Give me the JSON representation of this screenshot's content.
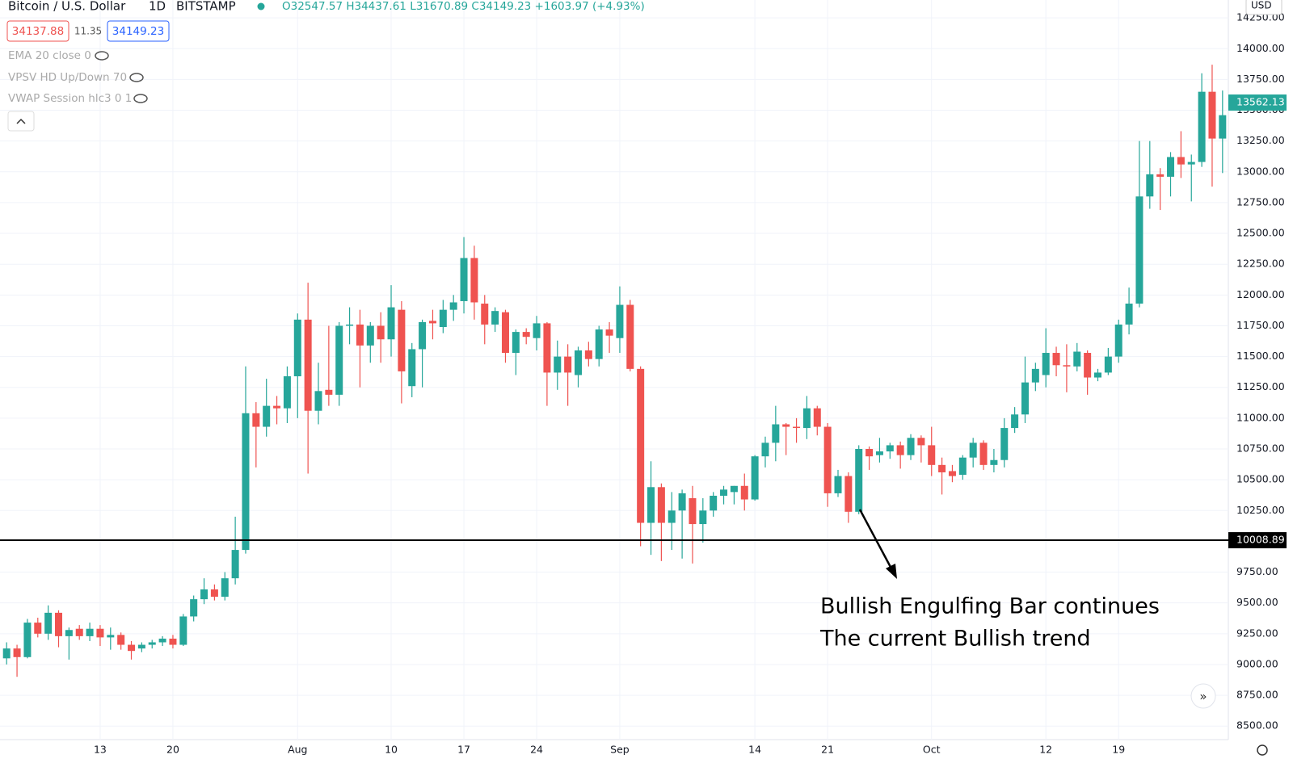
{
  "header": {
    "symbol": "Bitcoin / U.S. Dollar",
    "interval": "1D",
    "exchange": "BITSTAMP",
    "ohlc": "O32547.57 H34437.61 L31670.89 C34149.23 +1603.97 (+4.93%)",
    "bid": "34137.88",
    "spread": "11.35",
    "ask": "34149.23",
    "indicators": [
      "EMA 20 close 0",
      "VPSV HD Up/Down 70",
      "VWAP Session hlc3 0 1"
    ],
    "currency": "USD"
  },
  "chart_data": {
    "type": "candlestick",
    "categories": [
      null,
      null,
      null,
      null,
      null,
      null,
      null,
      null,
      null,
      "13",
      null,
      null,
      null,
      null,
      null,
      null,
      "20",
      null,
      null,
      null,
      null,
      null,
      null,
      null,
      null,
      null,
      null,
      null,
      "Aug",
      null,
      null,
      null,
      null,
      null,
      null,
      null,
      null,
      "10",
      null,
      null,
      null,
      null,
      null,
      null,
      "17",
      null,
      null,
      null,
      null,
      null,
      null,
      "24",
      null,
      null,
      null,
      null,
      null,
      null,
      null,
      "Sep",
      null,
      null,
      null,
      null,
      null,
      null,
      null,
      null,
      null,
      null,
      null,
      null,
      "14",
      null,
      null,
      null,
      null,
      null,
      null,
      "21",
      null,
      null,
      null,
      null,
      null,
      null,
      null,
      null,
      null,
      "Oct",
      null,
      null,
      null,
      null,
      null,
      null,
      null,
      null,
      null,
      null,
      "12",
      null,
      null,
      null,
      null,
      null,
      null,
      "19",
      null,
      null,
      null,
      null,
      null,
      null,
      null,
      null,
      null,
      null
    ],
    "open": [
      9050,
      9130,
      9060,
      9340,
      9250,
      9420,
      9230,
      9290,
      9230,
      9290,
      9220,
      9240,
      9160,
      9130,
      9160,
      9180,
      9210,
      9160,
      9390,
      9530,
      9610,
      9550,
      9700,
      9930,
      11040,
      10930,
      11100,
      11080,
      11340,
      11800,
      11060,
      11230,
      11190,
      11750,
      11760,
      11590,
      11750,
      11640,
      11880,
      11260,
      11560,
      11790,
      11740,
      11880,
      11950,
      12300,
      11930,
      11760,
      11860,
      11530,
      11700,
      11650,
      11770,
      11370,
      11500,
      11350,
      11550,
      11480,
      11720,
      11650,
      11920,
      11400,
      10150,
      10440,
      10150,
      10250,
      10350,
      10140,
      10250,
      10370,
      10400,
      10450,
      10340,
      10690,
      10800,
      10950,
      10930,
      10920,
      11080,
      10930,
      10390,
      10530,
      10240,
      10750,
      10700,
      10730,
      10780,
      10700,
      10840,
      10780,
      10620,
      10570,
      10540,
      10680,
      10800,
      10620,
      10660,
      10920,
      11030,
      11290,
      11350,
      11530,
      11430,
      11420,
      11530,
      11330,
      11370,
      11500,
      11760,
      11930,
      12800,
      12980,
      12960,
      13120,
      13060,
      13080,
      13650,
      13270
    ],
    "high": [
      9180,
      9160,
      9370,
      9380,
      9480,
      9440,
      9300,
      9320,
      9340,
      9320,
      9300,
      9260,
      9190,
      9180,
      9200,
      9230,
      9240,
      9410,
      9560,
      9700,
      9650,
      9750,
      10200,
      11420,
      11130,
      11320,
      11180,
      11420,
      11850,
      12100,
      11450,
      11750,
      11780,
      11900,
      11880,
      11780,
      11860,
      12080,
      11950,
      11610,
      11800,
      11880,
      11960,
      12000,
      12470,
      12400,
      12000,
      11900,
      11880,
      11720,
      11730,
      11830,
      11780,
      11630,
      11600,
      11580,
      11620,
      11750,
      11780,
      12070,
      11960,
      11420,
      10650,
      10470,
      10400,
      10420,
      10450,
      10350,
      10400,
      10450,
      10450,
      10550,
      10700,
      10850,
      11100,
      10960,
      11000,
      11180,
      11100,
      10960,
      10580,
      10560,
      10780,
      10770,
      10840,
      10800,
      10810,
      10870,
      10860,
      10930,
      10680,
      10620,
      10700,
      10840,
      10820,
      10750,
      11000,
      11090,
      11500,
      11450,
      11730,
      11580,
      11600,
      11610,
      11550,
      11400,
      11570,
      11800,
      12060,
      13250,
      13250,
      13030,
      13160,
      13330,
      13140,
      13800,
      13870,
      13660
    ],
    "low": [
      9000,
      8900,
      9050,
      9220,
      9200,
      9140,
      9040,
      9200,
      9190,
      9150,
      9120,
      9120,
      9040,
      9100,
      9130,
      9150,
      9130,
      9150,
      9350,
      9490,
      9520,
      9520,
      9650,
      9900,
      10600,
      10850,
      10950,
      10960,
      11000,
      10550,
      10950,
      11100,
      11100,
      11600,
      11250,
      11450,
      11450,
      11500,
      11120,
      11170,
      11250,
      11640,
      11690,
      11790,
      11850,
      11800,
      11600,
      11700,
      11450,
      11350,
      11600,
      11550,
      11100,
      11230,
      11100,
      11250,
      11420,
      11420,
      11530,
      11530,
      11380,
      9960,
      9890,
      9840,
      9930,
      9860,
      9820,
      9990,
      10200,
      10300,
      10300,
      10250,
      10330,
      10600,
      10650,
      10700,
      10800,
      10830,
      10860,
      10280,
      10360,
      10150,
      10220,
      10580,
      10640,
      10670,
      10590,
      10660,
      10640,
      10530,
      10380,
      10480,
      10500,
      10600,
      10580,
      10560,
      10600,
      10880,
      10960,
      11220,
      11250,
      11340,
      11210,
      11380,
      11190,
      11300,
      11350,
      11450,
      11680,
      11900,
      12700,
      12690,
      12800,
      12950,
      12760,
      13040,
      12880,
      12990
    ],
    "close": [
      9130,
      9060,
      9340,
      9250,
      9420,
      9230,
      9280,
      9230,
      9290,
      9220,
      9240,
      9160,
      9110,
      9160,
      9180,
      9210,
      9160,
      9390,
      9530,
      9610,
      9550,
      9700,
      9930,
      11040,
      10930,
      11100,
      11080,
      11340,
      11800,
      11060,
      11220,
      11190,
      11750,
      11760,
      11590,
      11750,
      11640,
      11900,
      11380,
      11560,
      11780,
      11770,
      11880,
      11940,
      12300,
      11940,
      11760,
      11870,
      11530,
      11700,
      11660,
      11770,
      11370,
      11500,
      11370,
      11550,
      11480,
      11720,
      11670,
      11920,
      11400,
      10150,
      10440,
      10150,
      10250,
      10390,
      10140,
      10250,
      10370,
      10420,
      10450,
      10340,
      10690,
      10800,
      10950,
      10930,
      10920,
      11080,
      10930,
      10390,
      10530,
      10240,
      10750,
      10690,
      10730,
      10780,
      10700,
      10840,
      10780,
      10620,
      10560,
      10530,
      10680,
      10800,
      10620,
      10660,
      10920,
      11030,
      11290,
      11400,
      11530,
      11430,
      11420,
      11540,
      11330,
      11370,
      11500,
      11760,
      11930,
      12800,
      12980,
      12960,
      13120,
      13060,
      13080,
      13650,
      13270,
      13460
    ],
    "up_color": "#26a69a",
    "down_color": "#ef5350",
    "ylim": [
      8390,
      14395
    ],
    "yticks": [
      {
        "value": 8500,
        "label": "8500.00"
      },
      {
        "value": 8750,
        "label": "8750.00"
      },
      {
        "value": 9000,
        "label": "9000.00"
      },
      {
        "value": 9250,
        "label": "9250.00"
      },
      {
        "value": 9500,
        "label": "9500.00"
      },
      {
        "value": 9750,
        "label": "9750.00"
      },
      {
        "value": 10000,
        "label": "10000.00"
      },
      {
        "value": 10250,
        "label": "10250.00"
      },
      {
        "value": 10500,
        "label": "10500.00"
      },
      {
        "value": 10750,
        "label": "10750.00"
      },
      {
        "value": 11000,
        "label": "11000.00"
      },
      {
        "value": 11250,
        "label": "11250.00"
      },
      {
        "value": 11500,
        "label": "11500.00"
      },
      {
        "value": 11750,
        "label": "11750.00"
      },
      {
        "value": 12000,
        "label": "12000.00"
      },
      {
        "value": 12250,
        "label": "12250.00"
      },
      {
        "value": 12500,
        "label": "12500.00"
      },
      {
        "value": 12750,
        "label": "12750.00"
      },
      {
        "value": 13000,
        "label": "13000.00"
      },
      {
        "value": 13250,
        "label": "13250.00"
      },
      {
        "value": 13500,
        "label": "13500.00"
      },
      {
        "value": 13750,
        "label": "13750.00"
      },
      {
        "value": 14000,
        "label": "14000.00"
      },
      {
        "value": 14250,
        "label": "14250.00"
      }
    ],
    "grid": true,
    "horizontal_line": 10008.89,
    "last_price": 13562.13,
    "annotation": [
      "Bullish Engulfing Bar continues",
      "The current Bullish trend"
    ]
  }
}
